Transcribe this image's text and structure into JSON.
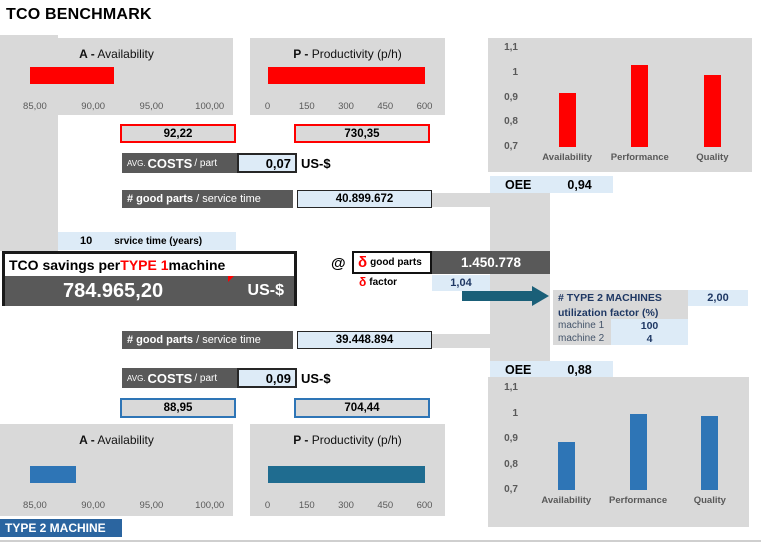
{
  "title": "TCO BENCHMARK",
  "colors": {
    "red": "#FF0000",
    "blue": "#2E75B6",
    "teal_bar": "#1F6C90",
    "navy_text": "#1F3864",
    "panel_gray": "#D9D9D9",
    "dark_gray": "#595959",
    "light_blue": "#DDEBF7",
    "arrow_teal": "#1A5F78",
    "type2_label_bg": "#2B65A0"
  },
  "type1": {
    "avg_costs": {
      "prefix": "AVG.",
      "word": "COSTS",
      "suffix": "/ part",
      "value": "0,07",
      "unit": "US-$"
    },
    "good_parts": {
      "bold": "# good parts",
      "rest": "/ service time",
      "value": "40.899.672"
    },
    "oee_label": "OEE",
    "oee_value": "0,94"
  },
  "type2": {
    "avg_costs": {
      "prefix": "AVG.",
      "word": "COSTS",
      "suffix": "/ part",
      "value": "0,09",
      "unit": "US-$"
    },
    "good_parts": {
      "bold": "# good parts",
      "rest": "/ service time",
      "value": "39.448.894"
    },
    "oee_label": "OEE",
    "oee_value": "0,88",
    "machine_label": "TYPE 2 MACHINE"
  },
  "service_time": {
    "value": "10",
    "label": "srvice time (years)"
  },
  "tco": {
    "title_pre": "TCO savings per ",
    "title_highlight": "TYPE 1",
    "title_post": " machine",
    "amount": "784.965,20",
    "unit": "US-$",
    "at_symbol": "@"
  },
  "delta": {
    "good_parts_symbol": "δ",
    "good_parts_label": "good parts",
    "good_parts_value": "1.450.778",
    "factor_symbol": "δ",
    "factor_label": "factor",
    "factor_value": "1,04"
  },
  "type2_machines": {
    "header_label": "# TYPE 2 MACHINES",
    "header_value": "2,00",
    "utilization_label": "utilization factor (%)",
    "rows": [
      {
        "label": "machine 1",
        "value": "100"
      },
      {
        "label": "machine 2",
        "value": "4"
      }
    ]
  },
  "chart_data": [
    {
      "id": "gauge-availability-type1",
      "type": "bar",
      "orientation": "horizontal",
      "title": "A - Availability",
      "title_bold": "A -",
      "title_rest": " Availability",
      "value": 92.22,
      "value_label": "92,22",
      "xlim": [
        85,
        100
      ],
      "tick_labels": [
        "85,00",
        "90,00",
        "95,00",
        "100,00"
      ],
      "series_color": "#FF0000",
      "grid": false
    },
    {
      "id": "gauge-productivity-type1",
      "type": "bar",
      "orientation": "horizontal",
      "title": "P - Productivity (p/h)",
      "title_bold": "P -",
      "title_rest": " Productivity (p/h)",
      "value": 730.35,
      "value_label": "730,35",
      "xlim": [
        0,
        600
      ],
      "tick_labels": [
        "0",
        "150",
        "300",
        "450",
        "600"
      ],
      "series_color": "#FF0000",
      "grid": false
    },
    {
      "id": "oee-type1",
      "type": "column",
      "categories": [
        "Availability",
        "Performance",
        "Quality"
      ],
      "values": [
        0.92,
        1.03,
        0.99
      ],
      "ylim": [
        0.7,
        1.1
      ],
      "baseline": 0.7,
      "ytick_labels": [
        "1,1",
        "1",
        "0,9",
        "0,8",
        "0,7"
      ],
      "ytick_values": [
        1.1,
        1.0,
        0.9,
        0.8,
        0.7
      ],
      "oee": 0.94,
      "series_color": "#FF0000",
      "grid": false,
      "legend": "none"
    },
    {
      "id": "gauge-availability-type2",
      "type": "bar",
      "orientation": "horizontal",
      "title": "A - Availability",
      "title_bold": "A -",
      "title_rest": " Availability",
      "value": 88.95,
      "value_label": "88,95",
      "xlim": [
        85,
        100
      ],
      "tick_labels": [
        "85,00",
        "90,00",
        "95,00",
        "100,00"
      ],
      "series_color": "#2E75B6",
      "grid": false
    },
    {
      "id": "gauge-productivity-type2",
      "type": "bar",
      "orientation": "horizontal",
      "title": "P - Productivity (p/h)",
      "title_bold": "P -",
      "title_rest": " Productivity (p/h)",
      "value": 704.44,
      "value_label": "704,44",
      "xlim": [
        0,
        600
      ],
      "tick_labels": [
        "0",
        "150",
        "300",
        "450",
        "600"
      ],
      "series_color": "#1F6C90",
      "grid": false
    },
    {
      "id": "oee-type2",
      "type": "column",
      "categories": [
        "Availability",
        "Performance",
        "Quality"
      ],
      "values": [
        0.89,
        1.0,
        0.99
      ],
      "ylim": [
        0.7,
        1.1
      ],
      "baseline": 0.7,
      "ytick_labels": [
        "1,1",
        "1",
        "0,9",
        "0,8",
        "0,7"
      ],
      "ytick_values": [
        1.1,
        1.0,
        0.9,
        0.8,
        0.7
      ],
      "oee": 0.88,
      "series_color": "#2E75B6",
      "grid": false,
      "legend": "none"
    }
  ]
}
